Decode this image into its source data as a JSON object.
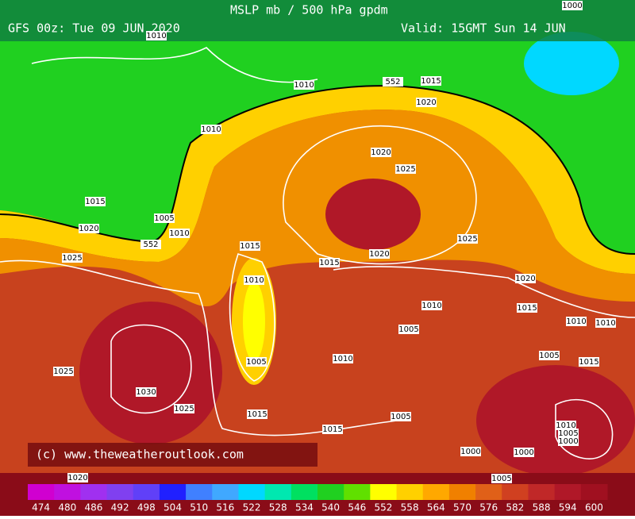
{
  "header": {
    "title": "MSLP mb / 500 hPa gpdm",
    "run": "GFS 00z: Tue 09 JUN 2020",
    "valid": "Valid: 15GMT Sun 14 JUN"
  },
  "contour_labels": [
    "1000",
    "1010",
    "1010",
    "552",
    "1015",
    "1020",
    "1010",
    "1020",
    "1025",
    "1015",
    "1005",
    "1020",
    "1010",
    "552",
    "1025",
    "1015",
    "1015",
    "1020",
    "1025",
    "1010",
    "1020",
    "1010",
    "1015",
    "1010",
    "1010",
    "1005",
    "1005",
    "1010",
    "1005",
    "1015",
    "1025",
    "1030",
    "1025",
    "1015",
    "1005",
    "1015",
    "1010",
    "1005",
    "1000",
    "1000",
    "1000",
    "1020",
    "1005"
  ],
  "copyright": "(c) www.theweatheroutlook.com",
  "colorbar": {
    "labels": [
      474,
      480,
      486,
      492,
      498,
      504,
      510,
      516,
      522,
      528,
      534,
      540,
      546,
      552,
      558,
      564,
      570,
      576,
      582,
      588,
      594,
      600
    ],
    "colors": [
      "#d000d0",
      "#c010e0",
      "#a030f0",
      "#8040f0",
      "#6040f8",
      "#2020ff",
      "#4080ff",
      "#40a8ff",
      "#00d8ff",
      "#00e8b0",
      "#00e060",
      "#20d020",
      "#60e000",
      "#ffff00",
      "#ffd000",
      "#ffa800",
      "#f08000",
      "#e06018",
      "#d04020",
      "#c02828",
      "#b01828",
      "#a01020"
    ]
  }
}
